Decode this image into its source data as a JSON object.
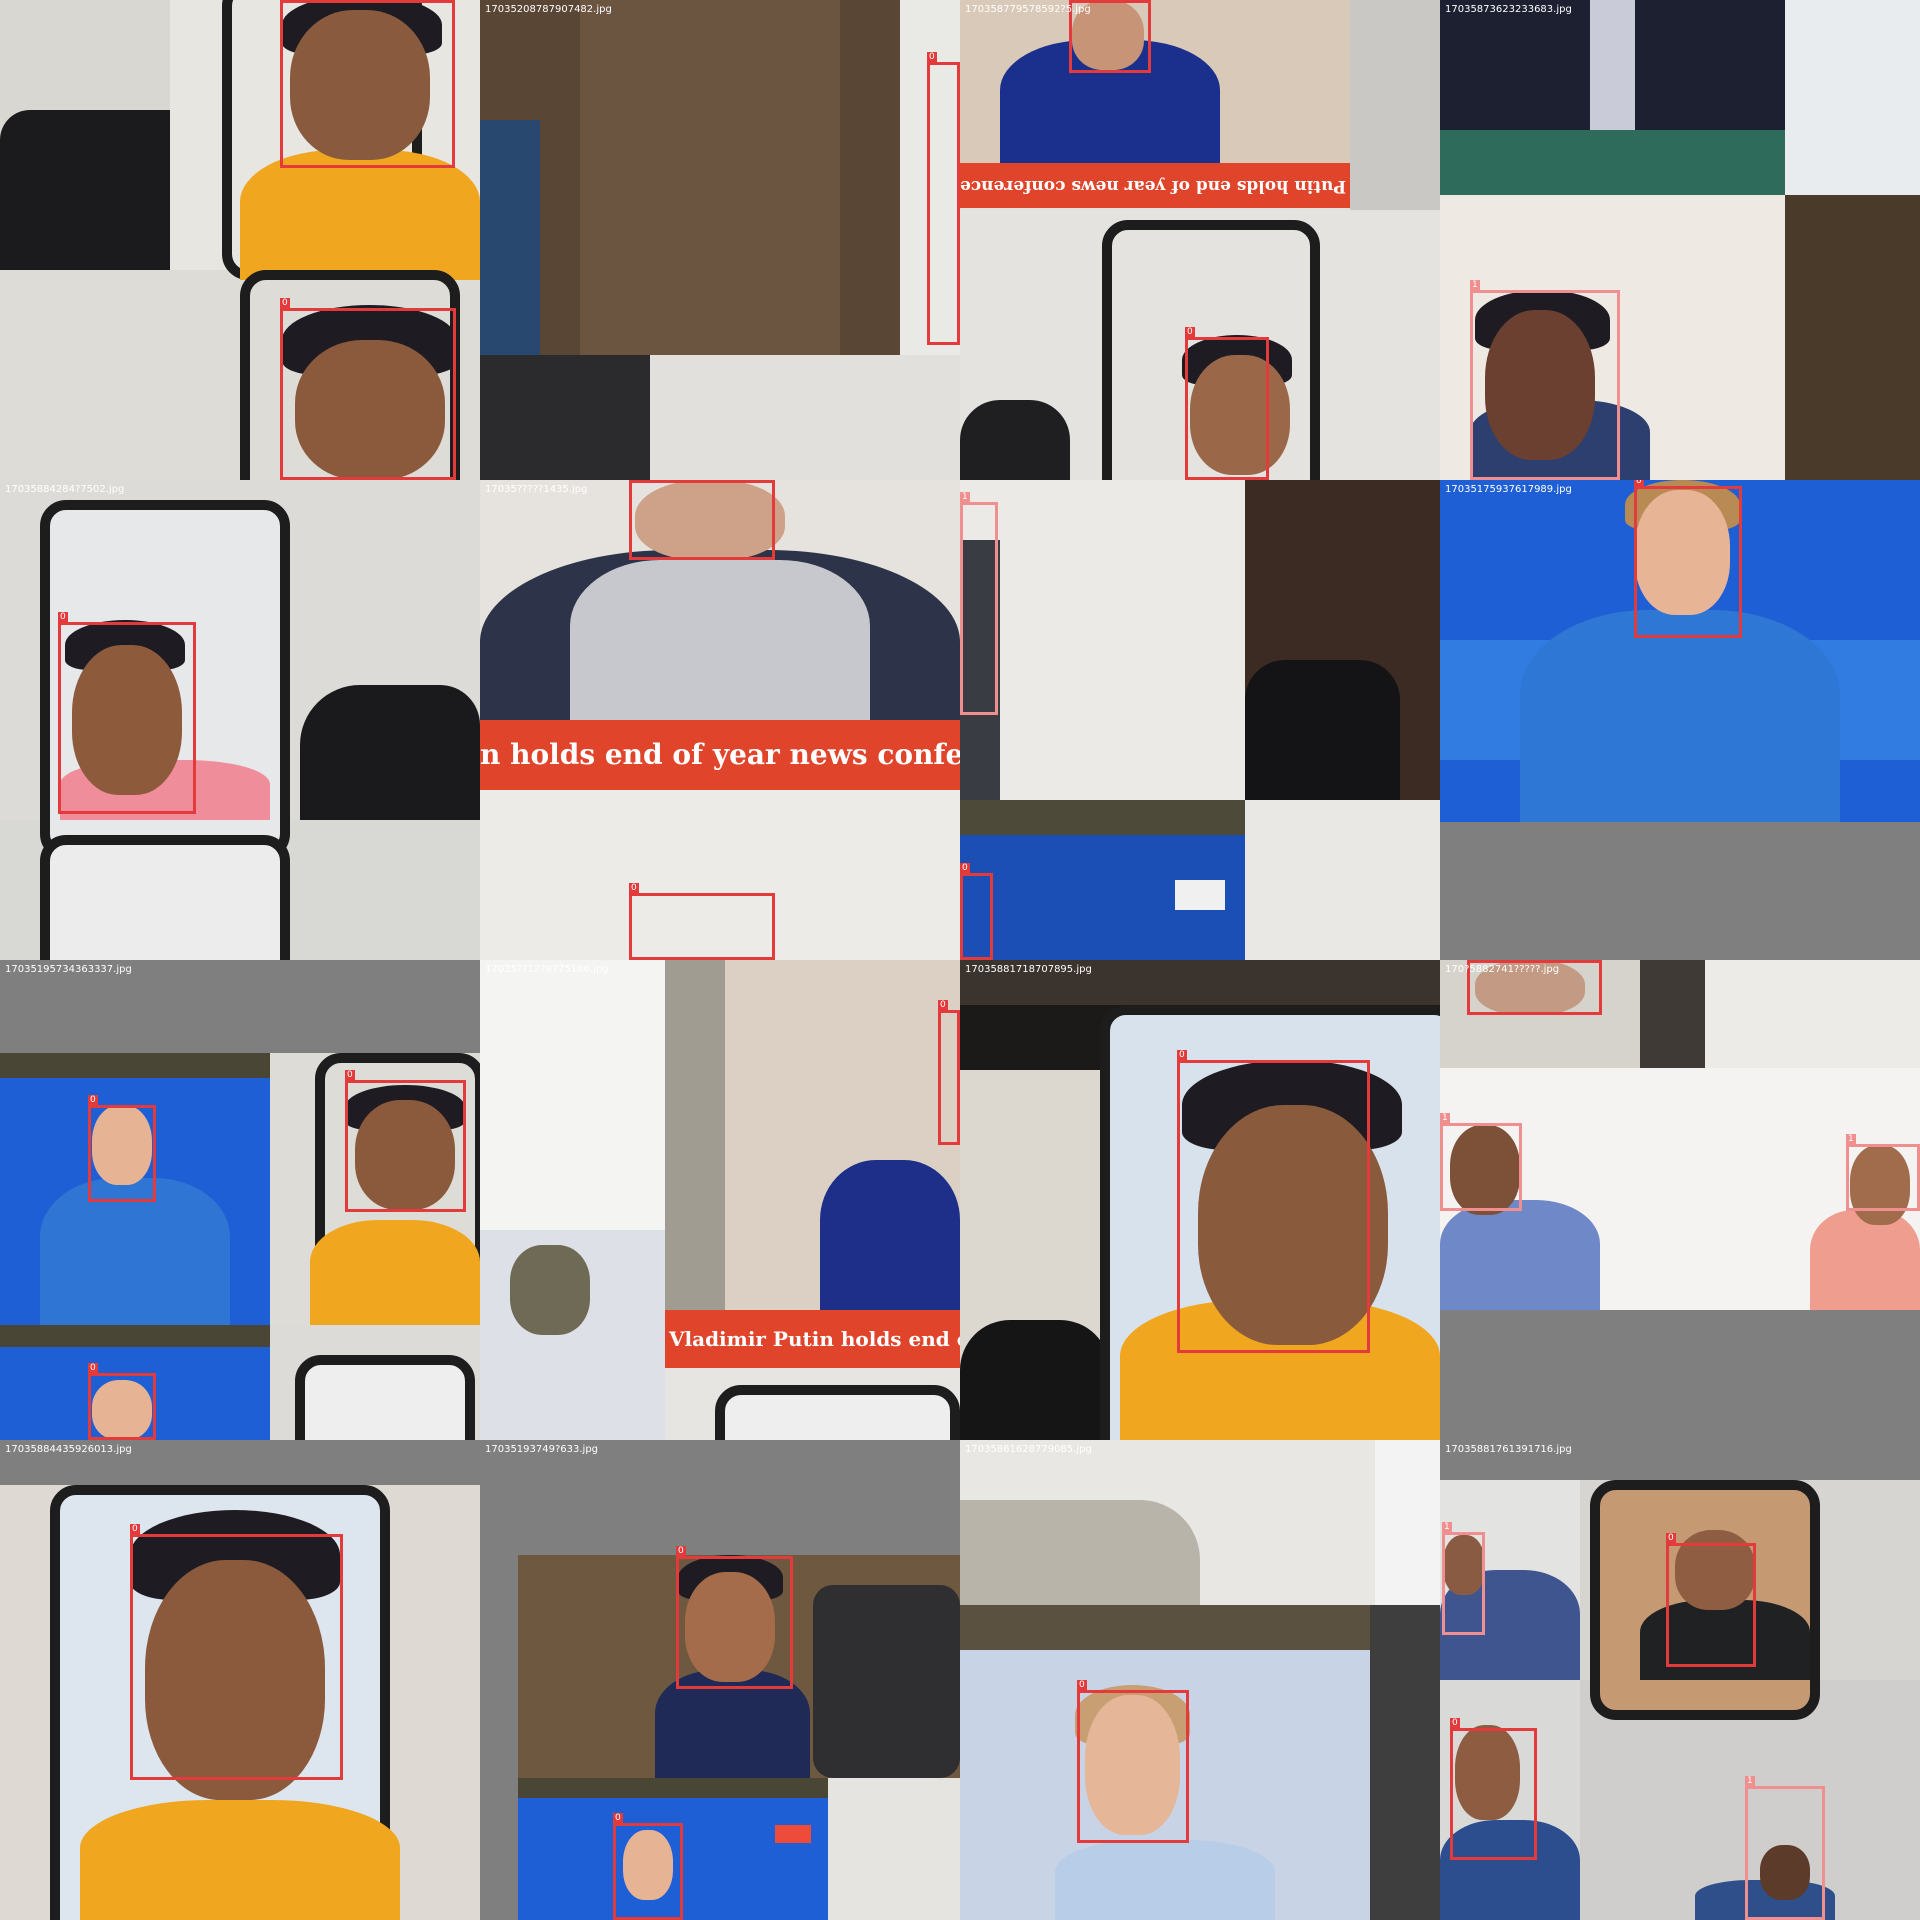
{
  "tiles": [
    {
      "filename": ""
    },
    {
      "filename": "17035208787907482.jpg"
    },
    {
      "filename": "170358779578592?5.jpg"
    },
    {
      "filename": "17035873623233683.jpg"
    },
    {
      "filename": "17035884284?7502.jpg"
    },
    {
      "filename": "17035?????1435.jpg"
    },
    {
      "filename": ""
    },
    {
      "filename": "17035175937617989.jpg"
    },
    {
      "filename": "17035195734363337.jpg"
    },
    {
      "filename": "17035??12?9775186.jpg"
    },
    {
      "filename": "17035881718707895.jpg"
    },
    {
      "filename": "170?5882741?????.jpg"
    },
    {
      "filename": "17035884435926013.jpg"
    },
    {
      "filename": "17035193749?633.jpg"
    },
    {
      "filename": "17035861628779085.jpg"
    },
    {
      "filename": "17035881761391716.jpg"
    }
  ],
  "box_labels": {
    "class0": "0",
    "class1": "1"
  },
  "banner_texts": {
    "mirrored": "Vladimir Putin holds end of year news conference",
    "large": "n holds end of year news conferen",
    "small": "Vladimir Putin holds end o"
  },
  "colors": {
    "box_red": "#e33b3b",
    "box_pink": "#f08f8f",
    "banner": "#e0452c",
    "tv_blue": "#1f5fd6"
  }
}
